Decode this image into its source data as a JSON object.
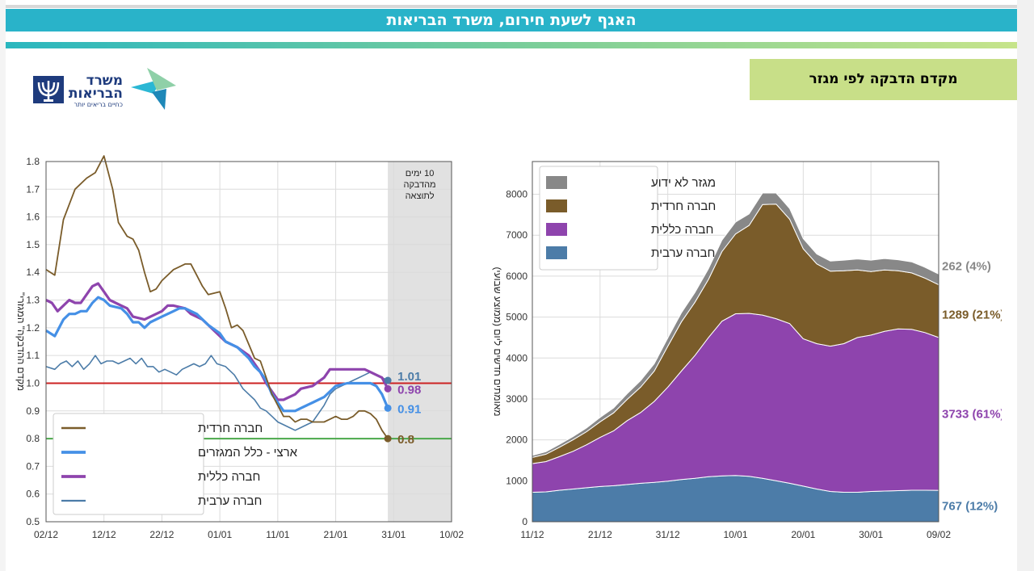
{
  "header": {
    "title": "האגף לשעת חירום, משרד הבריאות",
    "section_title": "מקדם הדבקה לפי מגזר"
  },
  "logo": {
    "line1": "משרד",
    "line2": "הבריאות",
    "tagline": "כחיים בריאים יותר"
  },
  "colors": {
    "haredi": "#7a5c2a",
    "national": "#4590e6",
    "general": "#8e44ad",
    "arab": "#4c7ca8",
    "unknown": "#888888"
  },
  "chart_data": [
    {
      "type": "line",
      "title": "",
      "ylabel": "\"מקדם ההדבקה\" המגזרי",
      "ylim": [
        0.5,
        1.8
      ],
      "yticks": [
        "0.5",
        "0.6",
        "0.7",
        "0.8",
        "0.9",
        "1.0",
        "1.1",
        "1.2",
        "1.3",
        "1.4",
        "1.5",
        "1.6",
        "1.7",
        "1.8"
      ],
      "xticks": [
        "02/12",
        "12/12",
        "22/12",
        "01/01",
        "11/01",
        "21/01",
        "31/01",
        "10/02"
      ],
      "x_range_days": [
        0,
        70
      ],
      "shaded_region_label": "10 ימים מהדבקה לתוצאה",
      "shaded_region_days": [
        59,
        70
      ],
      "reference_lines": [
        {
          "value": 1.0,
          "color": "#cc2222"
        },
        {
          "value": 0.8,
          "color": "#4aa84a"
        }
      ],
      "legend": [
        "חברה חרדית",
        "ארצי - כלל המגזרים",
        "חברה כללית",
        "חברה ערבית"
      ],
      "series": [
        {
          "name": "חברה חרדית",
          "key": "haredi",
          "end_label": "0.8",
          "points": [
            [
              0,
              1.41
            ],
            [
              1.5,
              1.39
            ],
            [
              3,
              1.59
            ],
            [
              5,
              1.7
            ],
            [
              7,
              1.74
            ],
            [
              8.5,
              1.76
            ],
            [
              10,
              1.82
            ],
            [
              11.5,
              1.7
            ],
            [
              12.5,
              1.58
            ],
            [
              14,
              1.53
            ],
            [
              15,
              1.52
            ],
            [
              16,
              1.48
            ],
            [
              17,
              1.4
            ],
            [
              18,
              1.33
            ],
            [
              19,
              1.34
            ],
            [
              20,
              1.37
            ],
            [
              22,
              1.41
            ],
            [
              23,
              1.42
            ],
            [
              24,
              1.43
            ],
            [
              25,
              1.43
            ],
            [
              26,
              1.39
            ],
            [
              27,
              1.35
            ],
            [
              28,
              1.32
            ],
            [
              30,
              1.33
            ],
            [
              31,
              1.27
            ],
            [
              32,
              1.2
            ],
            [
              33,
              1.21
            ],
            [
              34,
              1.19
            ],
            [
              35,
              1.14
            ],
            [
              36,
              1.09
            ],
            [
              37,
              1.08
            ],
            [
              38,
              1.02
            ],
            [
              39,
              0.96
            ],
            [
              40,
              0.92
            ],
            [
              41,
              0.88
            ],
            [
              42,
              0.88
            ],
            [
              43,
              0.86
            ],
            [
              44,
              0.87
            ],
            [
              45,
              0.87
            ],
            [
              46,
              0.86
            ],
            [
              47,
              0.86
            ],
            [
              48,
              0.86
            ],
            [
              49,
              0.87
            ],
            [
              50,
              0.88
            ],
            [
              51,
              0.87
            ],
            [
              52,
              0.87
            ],
            [
              53,
              0.88
            ],
            [
              54,
              0.9
            ],
            [
              55,
              0.9
            ],
            [
              56,
              0.89
            ],
            [
              57,
              0.87
            ],
            [
              58,
              0.83
            ],
            [
              59,
              0.8
            ]
          ]
        },
        {
          "name": "ארצי - כלל המגזרים",
          "key": "national",
          "end_label": "0.91",
          "points": [
            [
              0,
              1.19
            ],
            [
              1.5,
              1.17
            ],
            [
              3,
              1.23
            ],
            [
              4,
              1.25
            ],
            [
              5,
              1.25
            ],
            [
              6,
              1.26
            ],
            [
              7,
              1.26
            ],
            [
              8,
              1.29
            ],
            [
              9,
              1.31
            ],
            [
              10,
              1.3
            ],
            [
              11,
              1.28
            ],
            [
              13,
              1.27
            ],
            [
              14,
              1.25
            ],
            [
              15,
              1.22
            ],
            [
              16,
              1.22
            ],
            [
              17,
              1.2
            ],
            [
              18,
              1.22
            ],
            [
              20,
              1.24
            ],
            [
              22,
              1.26
            ],
            [
              23,
              1.27
            ],
            [
              24,
              1.27
            ],
            [
              26,
              1.25
            ],
            [
              28,
              1.21
            ],
            [
              30,
              1.18
            ],
            [
              31,
              1.15
            ],
            [
              32,
              1.14
            ],
            [
              33,
              1.13
            ],
            [
              35,
              1.09
            ],
            [
              36,
              1.06
            ],
            [
              37,
              1.04
            ],
            [
              38,
              1.01
            ],
            [
              39,
              0.96
            ],
            [
              40,
              0.93
            ],
            [
              41,
              0.9
            ],
            [
              43,
              0.9
            ],
            [
              44,
              0.91
            ],
            [
              46,
              0.93
            ],
            [
              48,
              0.95
            ],
            [
              50,
              0.99
            ],
            [
              52,
              1.0
            ],
            [
              54,
              1.0
            ],
            [
              56,
              1.0
            ],
            [
              57,
              0.99
            ],
            [
              58,
              0.96
            ],
            [
              59,
              0.91
            ]
          ]
        },
        {
          "name": "חברה כללית",
          "key": "general",
          "end_label": "0.98",
          "points": [
            [
              0,
              1.3
            ],
            [
              1,
              1.29
            ],
            [
              2,
              1.26
            ],
            [
              4,
              1.3
            ],
            [
              5,
              1.29
            ],
            [
              6,
              1.29
            ],
            [
              7,
              1.32
            ],
            [
              8,
              1.35
            ],
            [
              9,
              1.36
            ],
            [
              10,
              1.33
            ],
            [
              11,
              1.3
            ],
            [
              13,
              1.28
            ],
            [
              14,
              1.27
            ],
            [
              15,
              1.24
            ],
            [
              17,
              1.23
            ],
            [
              19,
              1.25
            ],
            [
              20,
              1.26
            ],
            [
              21,
              1.28
            ],
            [
              22,
              1.28
            ],
            [
              24,
              1.27
            ],
            [
              25,
              1.25
            ],
            [
              27,
              1.23
            ],
            [
              29,
              1.19
            ],
            [
              31,
              1.15
            ],
            [
              33,
              1.13
            ],
            [
              35,
              1.1
            ],
            [
              37,
              1.04
            ],
            [
              38,
              1.0
            ],
            [
              39,
              0.97
            ],
            [
              40,
              0.94
            ],
            [
              41,
              0.94
            ],
            [
              43,
              0.96
            ],
            [
              44,
              0.98
            ],
            [
              46,
              0.99
            ],
            [
              48,
              1.02
            ],
            [
              49,
              1.05
            ],
            [
              51,
              1.05
            ],
            [
              53,
              1.05
            ],
            [
              55,
              1.05
            ],
            [
              56,
              1.04
            ],
            [
              57,
              1.03
            ],
            [
              58,
              1.02
            ],
            [
              59,
              0.98
            ]
          ]
        },
        {
          "name": "חברה ערבית",
          "key": "arab",
          "end_label": "1.01",
          "points": [
            [
              0,
              1.06
            ],
            [
              1.5,
              1.05
            ],
            [
              2.5,
              1.07
            ],
            [
              3.5,
              1.08
            ],
            [
              4.5,
              1.06
            ],
            [
              5.5,
              1.08
            ],
            [
              6.5,
              1.05
            ],
            [
              7.5,
              1.07
            ],
            [
              8.5,
              1.1
            ],
            [
              9.5,
              1.07
            ],
            [
              10.5,
              1.08
            ],
            [
              11.5,
              1.08
            ],
            [
              12.5,
              1.07
            ],
            [
              13.5,
              1.08
            ],
            [
              14.5,
              1.09
            ],
            [
              15.5,
              1.07
            ],
            [
              16.5,
              1.09
            ],
            [
              17.5,
              1.06
            ],
            [
              18.5,
              1.06
            ],
            [
              19.5,
              1.04
            ],
            [
              20.5,
              1.05
            ],
            [
              21.5,
              1.04
            ],
            [
              22.5,
              1.03
            ],
            [
              23.5,
              1.05
            ],
            [
              24.5,
              1.06
            ],
            [
              25.5,
              1.07
            ],
            [
              26.5,
              1.06
            ],
            [
              27.5,
              1.07
            ],
            [
              28.5,
              1.1
            ],
            [
              29.5,
              1.07
            ],
            [
              31,
              1.06
            ],
            [
              32.5,
              1.03
            ],
            [
              34,
              0.98
            ],
            [
              35,
              0.96
            ],
            [
              36,
              0.94
            ],
            [
              37,
              0.91
            ],
            [
              38,
              0.9
            ],
            [
              39,
              0.88
            ],
            [
              40,
              0.86
            ],
            [
              41,
              0.85
            ],
            [
              42,
              0.84
            ],
            [
              43,
              0.83
            ],
            [
              44,
              0.84
            ],
            [
              45,
              0.85
            ],
            [
              46,
              0.86
            ],
            [
              47,
              0.89
            ],
            [
              48,
              0.92
            ],
            [
              49,
              0.96
            ],
            [
              50,
              0.98
            ],
            [
              51,
              0.99
            ],
            [
              52,
              1.0
            ],
            [
              53,
              1.01
            ],
            [
              54,
              1.02
            ],
            [
              55,
              1.03
            ],
            [
              56,
              1.04
            ],
            [
              57,
              1.03
            ],
            [
              58,
              1.02
            ],
            [
              59,
              1.01
            ]
          ]
        }
      ]
    },
    {
      "type": "area",
      "title": "",
      "ylabel": "מאומתים חדשים ליום (ממוצע שבועי)",
      "ylim": [
        0,
        8800
      ],
      "yticks": [
        "0",
        "1000",
        "2000",
        "3000",
        "4000",
        "5000",
        "6000",
        "7000",
        "8000"
      ],
      "xticks": [
        "11/12",
        "21/12",
        "31/12",
        "10/01",
        "20/01",
        "30/01",
        "09/02"
      ],
      "x_range_days": [
        0,
        60
      ],
      "legend": [
        "מגזר לא ידוע",
        "חברה חרדית",
        "חברה כללית",
        "חברה ערבית"
      ],
      "days": [
        0,
        2,
        4,
        6,
        8,
        10,
        12,
        14,
        16,
        18,
        20,
        22,
        24,
        26,
        28,
        30,
        32,
        34,
        36,
        38,
        40,
        42,
        44,
        46,
        48,
        50,
        52,
        54,
        56,
        58,
        60
      ],
      "series": [
        {
          "name": "חברה ערבית",
          "key": "arab",
          "end_label": "767 (12%)",
          "values": [
            720,
            730,
            770,
            800,
            830,
            860,
            880,
            910,
            940,
            960,
            990,
            1030,
            1060,
            1100,
            1120,
            1130,
            1110,
            1060,
            1000,
            940,
            870,
            800,
            740,
            720,
            720,
            740,
            750,
            760,
            770,
            770,
            767
          ]
        },
        {
          "name": "חברה כללית",
          "key": "general",
          "end_label": "3733 (61%)",
          "values": [
            700,
            740,
            820,
            920,
            1050,
            1200,
            1340,
            1560,
            1730,
            1980,
            2300,
            2650,
            3000,
            3400,
            3780,
            3950,
            3980,
            3990,
            3960,
            3900,
            3600,
            3550,
            3550,
            3630,
            3780,
            3820,
            3900,
            3950,
            3930,
            3850,
            3733
          ]
        },
        {
          "name": "חברה חרדית",
          "key": "haredi",
          "end_label": "1289 (21%)",
          "values": [
            150,
            180,
            230,
            280,
            320,
            380,
            440,
            520,
            620,
            740,
            1000,
            1200,
            1300,
            1420,
            1700,
            1950,
            2150,
            2700,
            2800,
            2550,
            2200,
            1950,
            1830,
            1780,
            1650,
            1550,
            1500,
            1420,
            1380,
            1330,
            1289
          ]
        },
        {
          "name": "מגזר לא ידוע",
          "key": "unknown",
          "end_label": "262 (4%)",
          "values": [
            50,
            60,
            70,
            80,
            90,
            110,
            120,
            140,
            160,
            180,
            200,
            220,
            240,
            260,
            280,
            290,
            280,
            280,
            270,
            260,
            250,
            240,
            250,
            260,
            270,
            280,
            280,
            270,
            270,
            265,
            262
          ]
        }
      ]
    }
  ]
}
